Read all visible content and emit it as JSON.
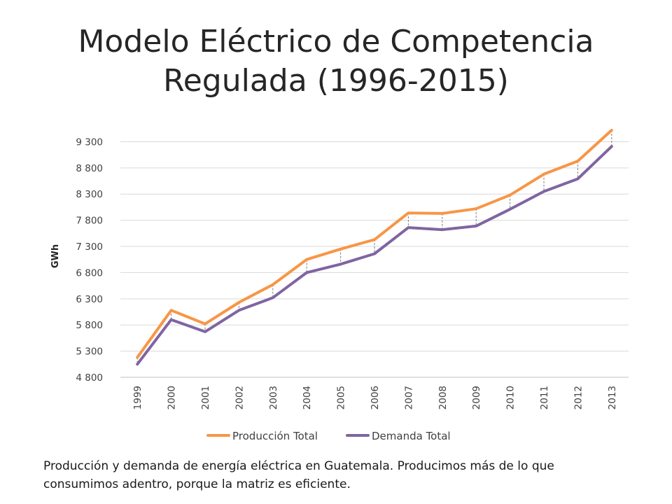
{
  "slide": {
    "title_line1": "Modelo Eléctrico de Competencia",
    "title_line2": "Regulada (1996-2015)",
    "caption_line1": "Producción y demanda de energía eléctrica en Guatemala. Producimos más de lo que",
    "caption_line2": "consumimos adentro, porque la matriz es eficiente."
  },
  "chart_data": {
    "type": "line",
    "ylabel": "GWh",
    "xlabel": "",
    "categories": [
      "1999",
      "2000",
      "2001",
      "2002",
      "2003",
      "2004",
      "2005",
      "2006",
      "2007",
      "2008",
      "2009",
      "2010",
      "2011",
      "2012",
      "2013"
    ],
    "ylim": [
      4800,
      9600
    ],
    "yticks": [
      4800,
      5300,
      5800,
      6300,
      6800,
      7300,
      7800,
      8300,
      8800,
      9300
    ],
    "ytick_labels": [
      "4 800",
      "5 300",
      "5 800",
      "6 300",
      "6 800",
      "7 300",
      "7 800",
      "8 300",
      "8 800",
      "9 300"
    ],
    "grid": true,
    "legend_position": "bottom",
    "drop_lines": true,
    "series": [
      {
        "name": "Producción Total",
        "color": "#F79646",
        "values": [
          5180,
          6080,
          5820,
          6230,
          6570,
          7050,
          7250,
          7430,
          7940,
          7930,
          8020,
          8280,
          8680,
          8930,
          9520
        ]
      },
      {
        "name": "Demanda Total",
        "color": "#8064A2",
        "values": [
          5050,
          5900,
          5670,
          6080,
          6320,
          6800,
          6960,
          7160,
          7660,
          7620,
          7690,
          8010,
          8350,
          8590,
          9210
        ]
      }
    ]
  }
}
